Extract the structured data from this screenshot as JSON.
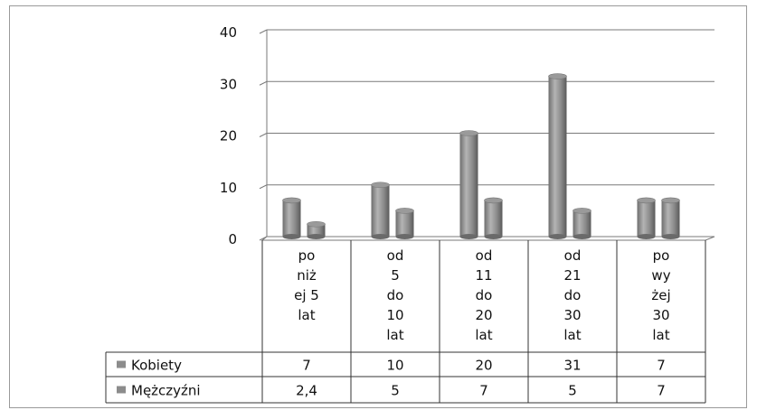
{
  "chart_data": {
    "type": "bar",
    "title": "",
    "xlabel": "",
    "ylabel": "",
    "ylim": [
      0,
      40
    ],
    "yticks": [
      0,
      10,
      20,
      30,
      40
    ],
    "grid": true,
    "legend": "data-table-left",
    "categories": [
      [
        "po",
        "niż",
        "ej 5",
        "lat"
      ],
      [
        "od",
        "5",
        "do",
        "10",
        "lat"
      ],
      [
        "od",
        "11",
        "do",
        "20",
        "lat"
      ],
      [
        "od",
        "21",
        "do",
        "30",
        "lat"
      ],
      [
        "po",
        "wy",
        "żej",
        "30",
        "lat"
      ]
    ],
    "series": [
      {
        "name": "Kobiety",
        "values": [
          7,
          10,
          20,
          31,
          7
        ],
        "labels": [
          "7",
          "10",
          "20",
          "31",
          "7"
        ],
        "color": "#8c8c8c"
      },
      {
        "name": "Mężczyźni",
        "values": [
          2.4,
          5,
          7,
          5,
          7
        ],
        "labels": [
          "2,4",
          "5",
          "7",
          "5",
          "7"
        ],
        "color": "#8c8c8c"
      }
    ]
  }
}
